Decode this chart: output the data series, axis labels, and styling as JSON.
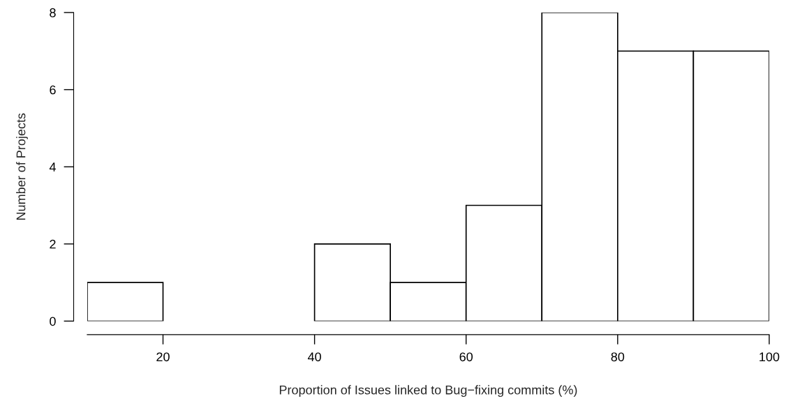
{
  "chart_data": {
    "type": "histogram",
    "xlabel": "Proportion of Issues linked to Bug−fixing commits (%)",
    "ylabel": "Number of Projects",
    "bins": [
      10,
      20,
      30,
      40,
      50,
      60,
      70,
      80,
      90,
      100
    ],
    "values": [
      1,
      0,
      0,
      2,
      1,
      3,
      8,
      7,
      7
    ],
    "color": "#ffffff",
    "xlim": [
      10,
      100
    ],
    "xticks": [
      20,
      40,
      60,
      80,
      100
    ],
    "ylim": [
      0,
      8
    ],
    "yticks": [
      0,
      2,
      4,
      6,
      8
    ],
    "grid": false
  }
}
